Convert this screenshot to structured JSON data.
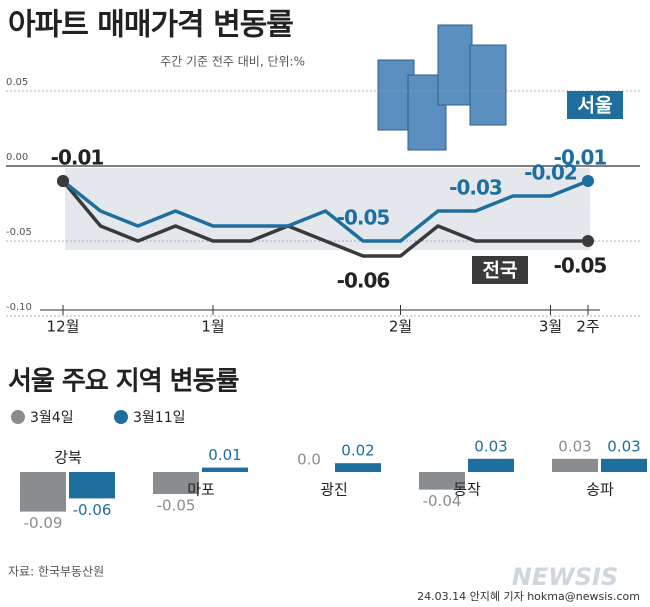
{
  "charts": [
    {
      "type": "line",
      "title": "아파트 매매가격 변동률",
      "subtitle": "주간 기준 전주 대비, 단위:%",
      "categories": [
        "12월",
        null,
        null,
        null,
        "1월",
        null,
        null,
        null,
        null,
        "2월",
        null,
        null,
        null,
        "3월",
        "2주"
      ],
      "series": [
        {
          "name": "서울",
          "color": "#1e6e9e",
          "values": [
            -0.01,
            -0.03,
            -0.04,
            -0.03,
            -0.04,
            -0.04,
            -0.04,
            -0.03,
            -0.05,
            -0.05,
            -0.03,
            -0.03,
            -0.02,
            -0.02,
            -0.01
          ],
          "value_labels": [
            "-0.01",
            null,
            null,
            null,
            null,
            null,
            null,
            null,
            "-0.05",
            null,
            null,
            "-0.03",
            null,
            "-0.02",
            "-0.01"
          ]
        },
        {
          "name": "전국",
          "color": "#3a3a3a",
          "values": [
            -0.01,
            -0.04,
            -0.05,
            -0.04,
            -0.05,
            -0.05,
            -0.04,
            -0.05,
            -0.06,
            -0.06,
            -0.04,
            -0.05,
            -0.05,
            -0.05,
            -0.05
          ],
          "value_labels": [
            null,
            null,
            null,
            null,
            null,
            null,
            null,
            null,
            "-0.06",
            null,
            null,
            null,
            null,
            null,
            "-0.05"
          ]
        }
      ],
      "ylim": [
        -0.1,
        0.05
      ],
      "yticks": [
        {
          "value": -0.1,
          "label": "-0.10"
        },
        -0.05,
        {
          "value": 0,
          "label": "0.00"
        },
        0.05
      ]
    },
    {
      "type": "bar",
      "title": "서울 주요 지역 변동률",
      "categories": [
        "강북",
        "마포",
        "광진",
        "동작",
        "송파"
      ],
      "series": [
        {
          "name": "3월4일",
          "color": "#8a8d90",
          "values": [
            -0.09,
            -0.05,
            0,
            -0.04,
            0.03
          ],
          "value_labels": [
            "-0.09",
            "-0.05",
            "0.0",
            "-0.04",
            "0.03"
          ]
        },
        {
          "name": "3월11일",
          "color": "#1e6e9e",
          "values": [
            -0.06,
            0.01,
            0.02,
            0.03,
            0.03
          ],
          "value_labels": [
            "-0.06",
            "0.01",
            "0.02",
            "0.03",
            "0.03"
          ]
        }
      ]
    }
  ],
  "source": "자료: 한국부동산원",
  "credit": "24.03.14 안지혜 기자 hokma@newsis.com",
  "watermark": "NEWSIS"
}
